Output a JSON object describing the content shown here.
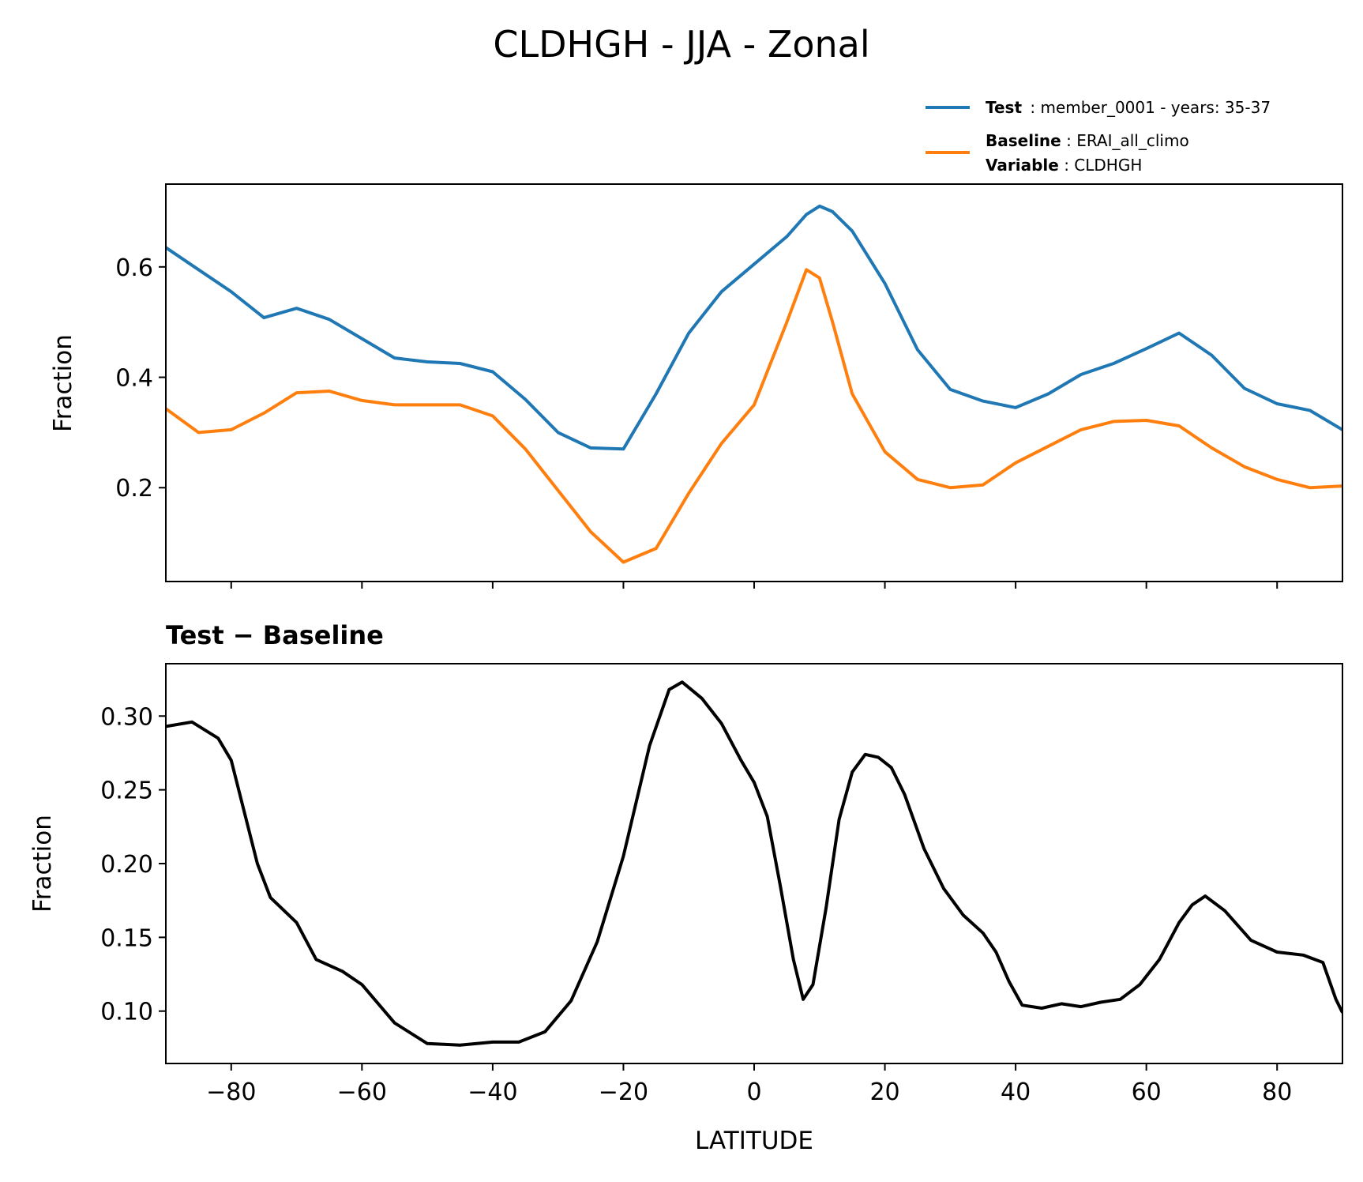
{
  "chart_data": [
    {
      "type": "line",
      "title": "CLDHGH - JJA - Zonal",
      "xlabel": "",
      "ylabel": "Fraction",
      "xlim": [
        -90,
        90
      ],
      "ylim": [
        0.03,
        0.75
      ],
      "yticks": [
        "0.2",
        "0.4",
        "0.6"
      ],
      "ytick_values": [
        0.2,
        0.4,
        0.6
      ],
      "xtick_values": [
        -80,
        -60,
        -40,
        -20,
        0,
        20,
        40,
        60,
        80
      ],
      "legend": {
        "test_key": "Test",
        "test_value": "member_0001 - years: 35-37",
        "baseline_key": "Baseline",
        "baseline_value": "ERAI_all_climo",
        "variable_key": "Variable",
        "variable_value": "CLDHGH"
      },
      "x": [
        -90,
        -85,
        -80,
        -75,
        -70,
        -65,
        -60,
        -55,
        -50,
        -45,
        -40,
        -35,
        -30,
        -25,
        -20,
        -15,
        -10,
        -5,
        0,
        5,
        8,
        10,
        12,
        15,
        20,
        25,
        30,
        35,
        40,
        45,
        50,
        55,
        60,
        65,
        70,
        75,
        80,
        85,
        90
      ],
      "series": [
        {
          "name": "Test",
          "color": "#1f77b4",
          "values": [
            0.635,
            0.595,
            0.555,
            0.508,
            0.525,
            0.505,
            0.47,
            0.435,
            0.428,
            0.425,
            0.41,
            0.36,
            0.3,
            0.272,
            0.27,
            0.37,
            0.48,
            0.555,
            0.605,
            0.655,
            0.695,
            0.71,
            0.7,
            0.665,
            0.57,
            0.45,
            0.378,
            0.357,
            0.345,
            0.37,
            0.405,
            0.425,
            0.452,
            0.48,
            0.44,
            0.38,
            0.352,
            0.34,
            0.305
          ]
        },
        {
          "name": "Baseline",
          "color": "#ff7f0e",
          "values": [
            0.343,
            0.3,
            0.305,
            0.335,
            0.372,
            0.375,
            0.358,
            0.35,
            0.35,
            0.35,
            0.33,
            0.27,
            0.195,
            0.12,
            0.065,
            0.09,
            0.19,
            0.28,
            0.35,
            0.5,
            0.595,
            0.58,
            0.5,
            0.37,
            0.265,
            0.215,
            0.2,
            0.205,
            0.245,
            0.275,
            0.305,
            0.32,
            0.322,
            0.312,
            0.272,
            0.238,
            0.215,
            0.2,
            0.203
          ]
        }
      ]
    },
    {
      "type": "line",
      "title": "Test − Baseline",
      "xlabel": "LATITUDE",
      "ylabel": "Fraction",
      "xlim": [
        -90,
        90
      ],
      "ylim": [
        0.0645,
        0.3355
      ],
      "xticks": [
        "−80",
        "−60",
        "−40",
        "−20",
        "0",
        "20",
        "40",
        "60",
        "80"
      ],
      "xtick_values": [
        -80,
        -60,
        -40,
        -20,
        0,
        20,
        40,
        60,
        80
      ],
      "yticks": [
        "0.10",
        "0.15",
        "0.20",
        "0.25",
        "0.30"
      ],
      "ytick_values": [
        0.1,
        0.15,
        0.2,
        0.25,
        0.3
      ],
      "x": [
        -90,
        -86,
        -82,
        -80,
        -76,
        -74,
        -70,
        -67,
        -63,
        -60,
        -55,
        -50,
        -45,
        -40,
        -36,
        -32,
        -28,
        -24,
        -20,
        -16,
        -13,
        -11,
        -8,
        -5,
        -2,
        0,
        2,
        4,
        6,
        7.5,
        9,
        11,
        13,
        15,
        17,
        19,
        21,
        23,
        26,
        29,
        32,
        35,
        37,
        39,
        41,
        44,
        47,
        50,
        53,
        56,
        59,
        62,
        65,
        67,
        69,
        72,
        76,
        80,
        84,
        87,
        89,
        90
      ],
      "series": [
        {
          "name": "Test − Baseline",
          "color": "#000000",
          "values": [
            0.293,
            0.296,
            0.285,
            0.27,
            0.2,
            0.177,
            0.16,
            0.135,
            0.127,
            0.118,
            0.092,
            0.078,
            0.077,
            0.079,
            0.079,
            0.086,
            0.107,
            0.147,
            0.205,
            0.28,
            0.318,
            0.323,
            0.312,
            0.295,
            0.27,
            0.255,
            0.232,
            0.185,
            0.135,
            0.108,
            0.118,
            0.17,
            0.23,
            0.262,
            0.274,
            0.272,
            0.265,
            0.247,
            0.21,
            0.183,
            0.165,
            0.153,
            0.14,
            0.12,
            0.104,
            0.102,
            0.105,
            0.103,
            0.106,
            0.108,
            0.118,
            0.135,
            0.16,
            0.172,
            0.178,
            0.168,
            0.148,
            0.14,
            0.138,
            0.133,
            0.108,
            0.099
          ]
        }
      ]
    }
  ]
}
